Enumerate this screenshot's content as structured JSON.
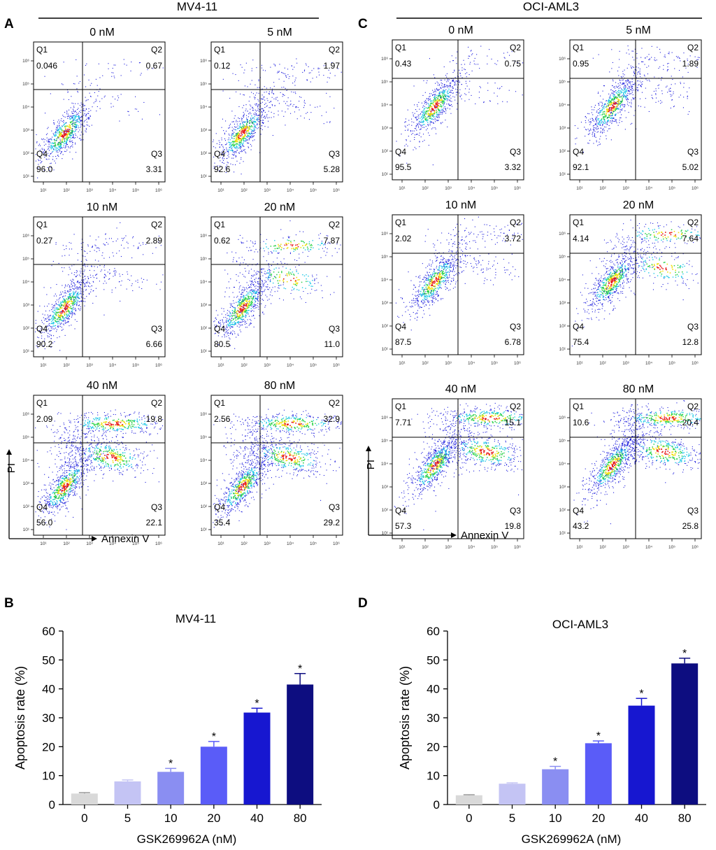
{
  "panel_letters": {
    "A": "A",
    "B": "B",
    "C": "C",
    "D": "D"
  },
  "flow": {
    "quadrant_labels": [
      "Q1",
      "Q2",
      "Q3",
      "Q4"
    ],
    "tick_labels": [
      "10¹",
      "10²",
      "10³",
      "10⁴",
      "10⁵",
      "10⁶"
    ],
    "axis_y": "PI",
    "axis_x": "Annexin V",
    "colors": {
      "dot": "#1a1adc",
      "mid": "#1ec8e6",
      "mid2": "#2bd24a",
      "core": "#f0e010",
      "hot": "#e81818"
    },
    "groups": [
      {
        "title": "MV4-11",
        "plots": [
          {
            "label": "0 nM",
            "q1": "0.046",
            "q2": "0.67",
            "q3": "3.31",
            "q4": "96.0",
            "stage": 0
          },
          {
            "label": "5 nM",
            "q1": "0.12",
            "q2": "1.97",
            "q3": "5.28",
            "q4": "92.6",
            "stage": 1
          },
          {
            "label": "10 nM",
            "q1": "0.27",
            "q2": "2.89",
            "q3": "6.66",
            "q4": "90.2",
            "stage": 1
          },
          {
            "label": "20 nM",
            "q1": "0.62",
            "q2": "7.87",
            "q3": "11.0",
            "q4": "80.5",
            "stage": 2
          },
          {
            "label": "40 nM",
            "q1": "2.09",
            "q2": "19.8",
            "q3": "22.1",
            "q4": "56.0",
            "stage": 3
          },
          {
            "label": "80 nM",
            "q1": "2.56",
            "q2": "32.9",
            "q3": "29.2",
            "q4": "35.4",
            "stage": 3
          }
        ]
      },
      {
        "title": "OCI-AML3",
        "plots": [
          {
            "label": "0 nM",
            "q1": "0.43",
            "q2": "0.75",
            "q3": "3.32",
            "q4": "95.5",
            "stage": 0
          },
          {
            "label": "5 nM",
            "q1": "0.95",
            "q2": "1.89",
            "q3": "5.02",
            "q4": "92.1",
            "stage": 1
          },
          {
            "label": "10 nM",
            "q1": "2.02",
            "q2": "3.72",
            "q3": "6.78",
            "q4": "87.5",
            "stage": 1
          },
          {
            "label": "20 nM",
            "q1": "4.14",
            "q2": "7.64",
            "q3": "12.8",
            "q4": "75.4",
            "stage": 2
          },
          {
            "label": "40 nM",
            "q1": "7.71",
            "q2": "15.1",
            "q3": "19.8",
            "q4": "57.3",
            "stage": 3
          },
          {
            "label": "80 nM",
            "q1": "10.6",
            "q2": "20.4",
            "q3": "25.8",
            "q4": "43.2",
            "stage": 3
          }
        ]
      }
    ]
  },
  "chart_data": [
    {
      "type": "bar",
      "title": "MV4-11",
      "categories": [
        "0",
        "5",
        "10",
        "20",
        "40",
        "80"
      ],
      "values": [
        3.8,
        8.0,
        11.3,
        20.0,
        31.8,
        41.5
      ],
      "errors": [
        0.3,
        0.5,
        1.2,
        1.8,
        1.5,
        3.8
      ],
      "significance": [
        "",
        "",
        "*",
        "*",
        "*",
        "*"
      ],
      "colors": [
        "#d9d9d9",
        "#c4c4f4",
        "#8a8ef2",
        "#5a5cf8",
        "#1717d0",
        "#0d0d80"
      ],
      "xlabel": "GSK269962A (nM)",
      "ylabel": "Apoptosis rate (%)",
      "ylim": [
        0,
        60
      ],
      "yticks": [
        0,
        10,
        20,
        30,
        40,
        50,
        60
      ]
    },
    {
      "type": "bar",
      "title": "OCI-AML3",
      "categories": [
        "0",
        "5",
        "10",
        "20",
        "40",
        "80"
      ],
      "values": [
        3.2,
        7.2,
        12.2,
        21.2,
        34.2,
        48.8
      ],
      "errors": [
        0.2,
        0.3,
        1.0,
        0.8,
        2.5,
        1.8
      ],
      "significance": [
        "",
        "",
        "*",
        "*",
        "*",
        "*"
      ],
      "colors": [
        "#d9d9d9",
        "#c4c4f4",
        "#8a8ef2",
        "#5a5cf8",
        "#1717d0",
        "#0d0d80"
      ],
      "xlabel": "GSK269962A (nM)",
      "ylabel": "Apoptosis rate (%)",
      "ylim": [
        0,
        60
      ],
      "yticks": [
        0,
        10,
        20,
        30,
        40,
        50,
        60
      ]
    }
  ]
}
